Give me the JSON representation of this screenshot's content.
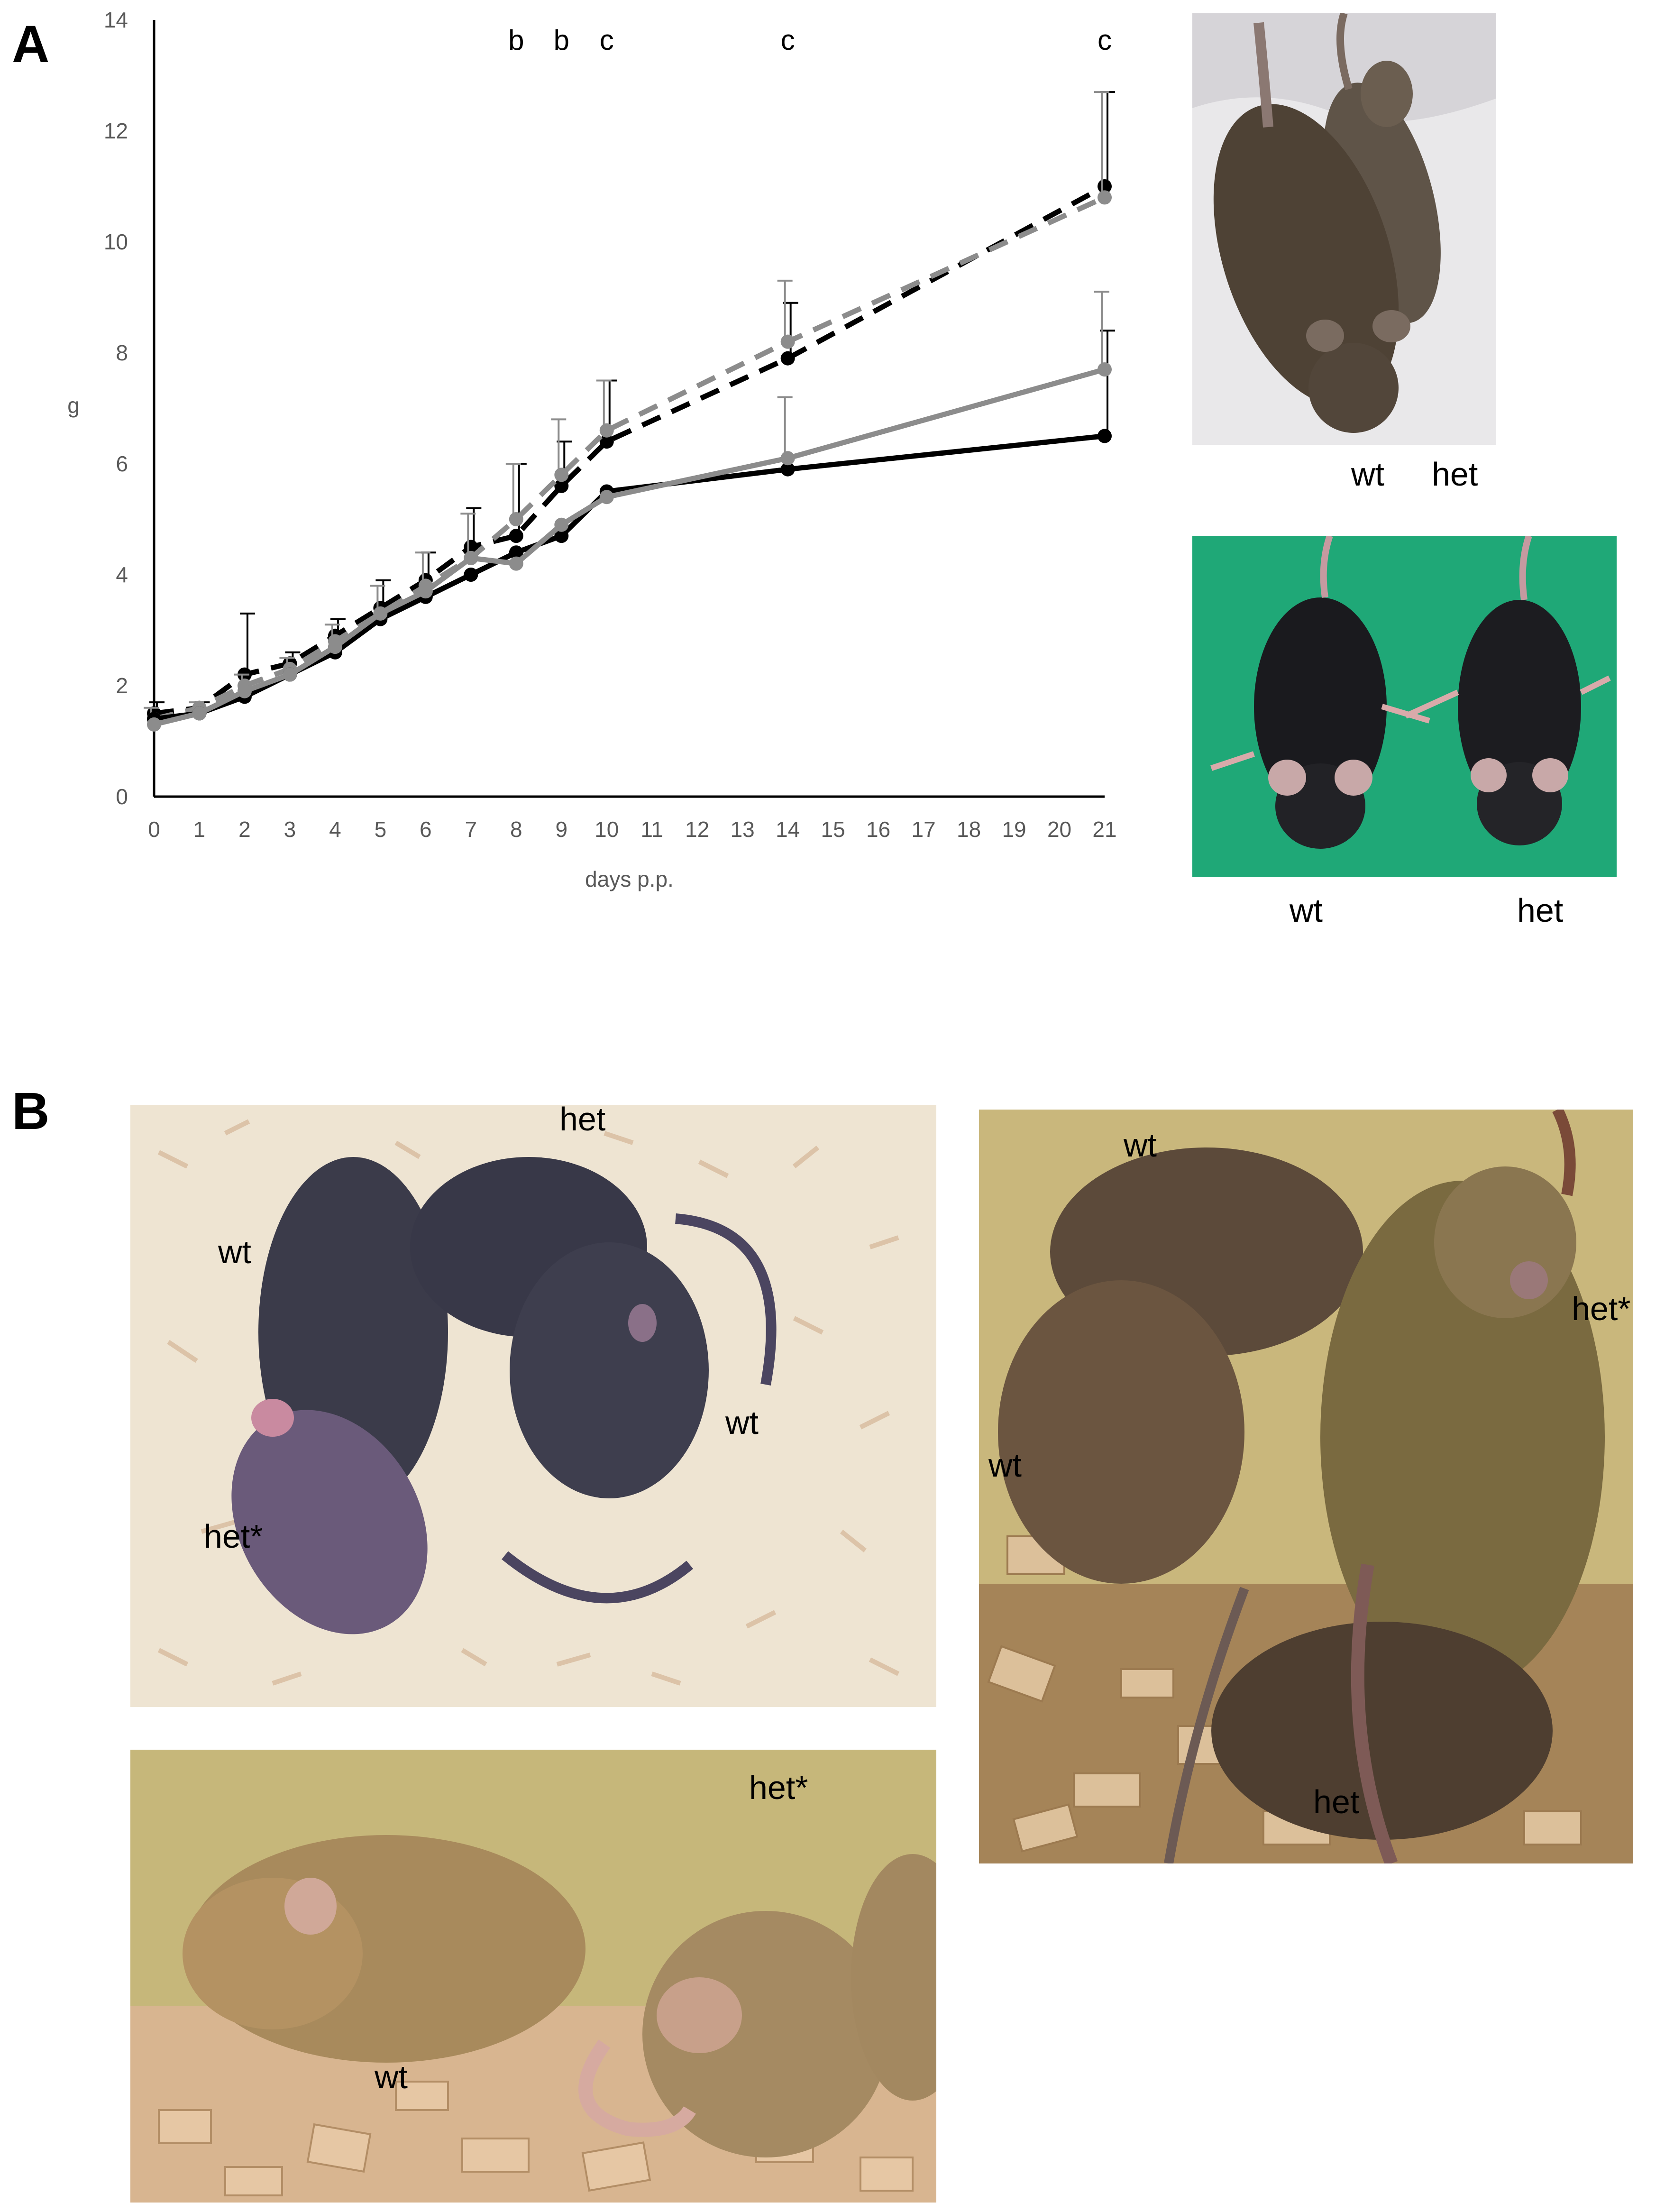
{
  "figure": {
    "panel_a_label": "A",
    "panel_b_label": "B"
  },
  "chart_data": {
    "type": "line",
    "title": "",
    "xlabel": "days p.p.",
    "ylabel": "g",
    "ylim": [
      0,
      14
    ],
    "yticks": [
      0,
      2,
      4,
      6,
      8,
      10,
      12,
      14
    ],
    "xticks": [
      0,
      1,
      2,
      3,
      4,
      5,
      6,
      7,
      8,
      9,
      10,
      11,
      12,
      13,
      14,
      15,
      16,
      17,
      18,
      19,
      20,
      21
    ],
    "grid": false,
    "legend": "none",
    "significance_labels": [
      {
        "x": 8,
        "text": "b"
      },
      {
        "x": 9,
        "text": "b"
      },
      {
        "x": 10,
        "text": "c"
      },
      {
        "x": 14,
        "text": "c"
      },
      {
        "x": 21,
        "text": "c"
      }
    ],
    "series": [
      {
        "color": "#000000",
        "dash": true,
        "x": [
          0,
          1,
          2,
          3,
          4,
          5,
          6,
          7,
          8,
          9,
          10,
          14,
          21
        ],
        "values": [
          1.5,
          1.6,
          2.2,
          2.4,
          2.9,
          3.4,
          3.9,
          4.5,
          4.7,
          5.6,
          6.4,
          7.9,
          11.0
        ],
        "err": [
          0.2,
          0.1,
          1.1,
          0.2,
          0.3,
          0.5,
          0.5,
          0.7,
          1.3,
          0.8,
          1.1,
          1.0,
          1.7
        ]
      },
      {
        "color": "#8c8c8c",
        "dash": true,
        "x": [
          0,
          1,
          2,
          3,
          4,
          5,
          6,
          7,
          8,
          9,
          10,
          14,
          21
        ],
        "values": [
          1.4,
          1.6,
          2.0,
          2.3,
          2.8,
          3.3,
          3.8,
          4.3,
          5.0,
          5.8,
          6.6,
          8.2,
          10.8
        ],
        "err": [
          0.2,
          0.1,
          0.2,
          0.2,
          0.3,
          0.5,
          0.6,
          0.8,
          1.0,
          1.0,
          0.9,
          1.1,
          1.9
        ]
      },
      {
        "color": "#000000",
        "dash": false,
        "x": [
          0,
          1,
          2,
          3,
          4,
          5,
          6,
          7,
          8,
          9,
          10,
          14,
          21
        ],
        "values": [
          1.4,
          1.5,
          1.8,
          2.2,
          2.6,
          3.2,
          3.6,
          4.0,
          4.4,
          4.7,
          5.5,
          5.9,
          6.5
        ],
        "err": [
          0,
          0,
          0,
          0,
          0,
          0,
          0,
          0,
          0,
          0,
          0,
          0,
          1.9
        ]
      },
      {
        "color": "#8c8c8c",
        "dash": false,
        "x": [
          0,
          1,
          2,
          3,
          4,
          5,
          6,
          7,
          8,
          9,
          10,
          14,
          21
        ],
        "values": [
          1.3,
          1.5,
          1.9,
          2.2,
          2.7,
          3.3,
          3.7,
          4.3,
          4.2,
          4.9,
          5.4,
          6.1,
          7.7
        ],
        "err": [
          0,
          0,
          0,
          0,
          0,
          0,
          0,
          0,
          0,
          0,
          0,
          1.1,
          1.4
        ]
      }
    ]
  },
  "photos_a": {
    "top_labels": [
      "wt",
      "het"
    ],
    "bottom_labels": [
      "wt",
      "het"
    ]
  },
  "photos_b": {
    "photo1_labels": [
      "het",
      "wt",
      "wt",
      "het*"
    ],
    "photo2_labels": [
      "het*",
      "wt"
    ],
    "photo3_labels": [
      "wt",
      "het*",
      "wt",
      "het"
    ]
  }
}
